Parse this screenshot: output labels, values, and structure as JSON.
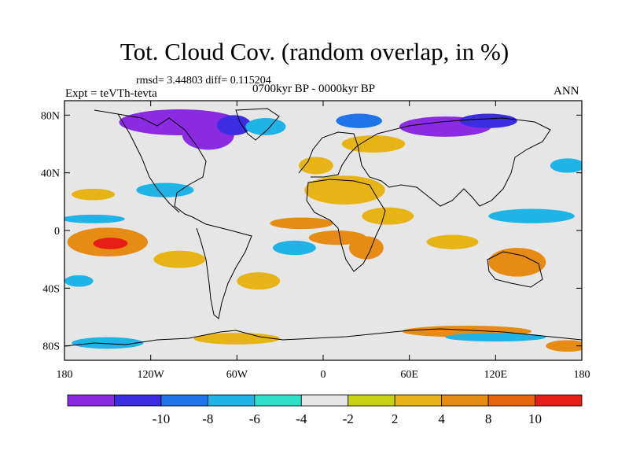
{
  "title": "Tot. Cloud Cov. (random overlap, in %)",
  "stats": "rmsd= 3.44803 diff= 0.115204",
  "experiment": "Expt = teVTh-tevta",
  "period": "0700kyr BP - 0000kyr BP",
  "season": "ANN",
  "map": {
    "projection": "cylindrical-equidistant",
    "lon_range": [
      -180,
      180
    ],
    "lat_range": [
      -90,
      90
    ],
    "background_color": "#e6e6e6",
    "coastline_color": "#000000",
    "x_ticks": [
      {
        "lon": -180,
        "label": "180"
      },
      {
        "lon": -120,
        "label": "120W"
      },
      {
        "lon": -60,
        "label": "60W"
      },
      {
        "lon": 0,
        "label": "0"
      },
      {
        "lon": 60,
        "label": "60E"
      },
      {
        "lon": 120,
        "label": "120E"
      },
      {
        "lon": 180,
        "label": "180"
      }
    ],
    "y_ticks": [
      {
        "lat": 80,
        "label": "80N"
      },
      {
        "lat": 40,
        "label": "40N"
      },
      {
        "lat": 0,
        "label": "0"
      },
      {
        "lat": -40,
        "label": "40S"
      },
      {
        "lat": -80,
        "label": "80S"
      }
    ]
  },
  "colorbar": {
    "colors": [
      "#8a2be2",
      "#3c2ee0",
      "#1e74e8",
      "#1fb3e6",
      "#2ee0c8",
      "#e6e6e6",
      "#c8d214",
      "#e6b414",
      "#e68c14",
      "#e6640a",
      "#e61e14"
    ],
    "labels": [
      "-10",
      "-8",
      "-6",
      "-4",
      "-2",
      "2",
      "4",
      "8",
      "10"
    ]
  },
  "anomalies": [
    {
      "lon": -100,
      "lat": 75,
      "rx": 42,
      "ry": 9,
      "level": -10
    },
    {
      "lon": -80,
      "lat": 66,
      "rx": 18,
      "ry": 10,
      "level": -10
    },
    {
      "lon": -62,
      "lat": 73,
      "rx": 12,
      "ry": 7,
      "level": -8
    },
    {
      "lon": 25,
      "lat": 76,
      "rx": 16,
      "ry": 5,
      "level": -6
    },
    {
      "lon": 85,
      "lat": 72,
      "rx": 32,
      "ry": 7,
      "level": -10
    },
    {
      "lon": 115,
      "lat": 76,
      "rx": 20,
      "ry": 5,
      "level": -8
    },
    {
      "lon": -40,
      "lat": 72,
      "rx": 14,
      "ry": 6,
      "level": -4
    },
    {
      "lon": 35,
      "lat": 60,
      "rx": 22,
      "ry": 6,
      "level": 4
    },
    {
      "lon": 15,
      "lat": 28,
      "rx": 28,
      "ry": 10,
      "level": 4
    },
    {
      "lon": 45,
      "lat": 10,
      "rx": 18,
      "ry": 6,
      "level": 4
    },
    {
      "lon": -150,
      "lat": -8,
      "rx": 28,
      "ry": 10,
      "level": 8
    },
    {
      "lon": -148,
      "lat": -9,
      "rx": 12,
      "ry": 4,
      "level": 10
    },
    {
      "lon": -100,
      "lat": -20,
      "rx": 18,
      "ry": 6,
      "level": 4
    },
    {
      "lon": 10,
      "lat": -5,
      "rx": 20,
      "ry": 5,
      "level": 8
    },
    {
      "lon": 30,
      "lat": -12,
      "rx": 12,
      "ry": 8,
      "level": 8
    },
    {
      "lon": -20,
      "lat": -12,
      "rx": 15,
      "ry": 5,
      "level": -4
    },
    {
      "lon": 135,
      "lat": -22,
      "rx": 20,
      "ry": 10,
      "level": 8
    },
    {
      "lon": 90,
      "lat": -8,
      "rx": 18,
      "ry": 5,
      "level": 4
    },
    {
      "lon": 145,
      "lat": 10,
      "rx": 30,
      "ry": 5,
      "level": -4
    },
    {
      "lon": -160,
      "lat": 8,
      "rx": 22,
      "ry": 3,
      "level": -4
    },
    {
      "lon": -15,
      "lat": 5,
      "rx": 22,
      "ry": 4,
      "level": 8
    },
    {
      "lon": -160,
      "lat": 25,
      "rx": 15,
      "ry": 4,
      "level": 4
    },
    {
      "lon": -110,
      "lat": 28,
      "rx": 20,
      "ry": 5,
      "level": -4
    },
    {
      "lon": 100,
      "lat": -70,
      "rx": 45,
      "ry": 4,
      "level": 8
    },
    {
      "lon": 120,
      "lat": -74,
      "rx": 35,
      "ry": 3,
      "level": -4
    },
    {
      "lon": -60,
      "lat": -75,
      "rx": 30,
      "ry": 4,
      "level": 4
    },
    {
      "lon": -150,
      "lat": -78,
      "rx": 25,
      "ry": 4,
      "level": -4
    },
    {
      "lon": 170,
      "lat": -80,
      "rx": 15,
      "ry": 4,
      "level": 8
    },
    {
      "lon": -45,
      "lat": -35,
      "rx": 15,
      "ry": 6,
      "level": 4
    },
    {
      "lon": -170,
      "lat": -35,
      "rx": 10,
      "ry": 4,
      "level": -4
    },
    {
      "lon": 170,
      "lat": 45,
      "rx": 12,
      "ry": 5,
      "level": -4
    },
    {
      "lon": -5,
      "lat": 45,
      "rx": 12,
      "ry": 6,
      "level": 4
    }
  ]
}
